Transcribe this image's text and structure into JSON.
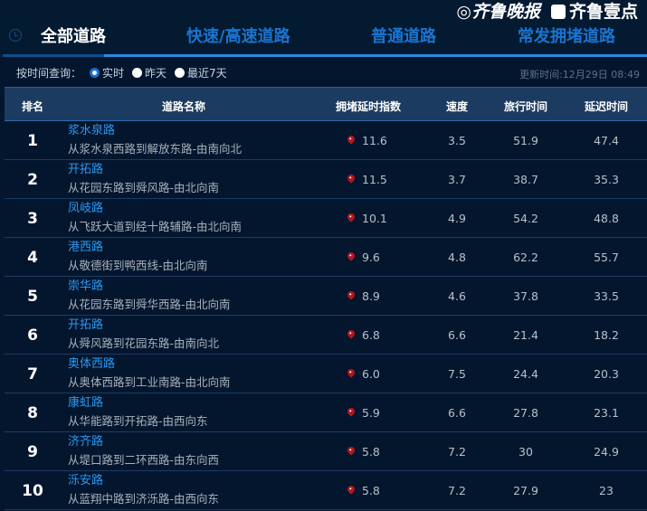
{
  "tabs": [
    {
      "label": "全部道路",
      "active": true
    },
    {
      "label": "快速/高速道路"
    },
    {
      "label": "普通道路"
    },
    {
      "label": "常发拥堵道路"
    }
  ],
  "filter": {
    "label": "按时间查询：",
    "options": [
      {
        "label": "实时",
        "selected": true
      },
      {
        "label": "昨天"
      },
      {
        "label": "最近7天"
      }
    ]
  },
  "update_time": "更新时间:12月29日 08:49",
  "columns": [
    "排名",
    "道路名称",
    "拥堵延时指数",
    "速度",
    "旅行时间",
    "延迟时间"
  ],
  "rows": [
    {
      "rank": "1",
      "name": "浆水泉路",
      "desc": "从浆水泉西路到解放东路-由南向北",
      "index": "11.6",
      "speed": "3.5",
      "travel": "51.9",
      "delay": "47.4"
    },
    {
      "rank": "2",
      "name": "开拓路",
      "desc": "从花园东路到舜风路-由北向南",
      "index": "11.5",
      "speed": "3.7",
      "travel": "38.7",
      "delay": "35.3"
    },
    {
      "rank": "3",
      "name": "凤岐路",
      "desc": "从飞跃大道到经十路辅路-由北向南",
      "index": "10.1",
      "speed": "4.9",
      "travel": "54.2",
      "delay": "48.8"
    },
    {
      "rank": "4",
      "name": "港西路",
      "desc": "从敬德街到鸭西线-由北向南",
      "index": "9.6",
      "speed": "4.8",
      "travel": "62.2",
      "delay": "55.7"
    },
    {
      "rank": "5",
      "name": "崇华路",
      "desc": "从花园东路到舜华西路-由北向南",
      "index": "8.9",
      "speed": "4.6",
      "travel": "37.8",
      "delay": "33.5"
    },
    {
      "rank": "6",
      "name": "开拓路",
      "desc": "从舜风路到花园东路-由南向北",
      "index": "6.8",
      "speed": "6.6",
      "travel": "21.4",
      "delay": "18.2"
    },
    {
      "rank": "7",
      "name": "奥体西路",
      "desc": "从奥体西路到工业南路-由北向南",
      "index": "6.0",
      "speed": "7.5",
      "travel": "24.4",
      "delay": "20.3"
    },
    {
      "rank": "8",
      "name": "康虹路",
      "desc": "从华能路到开拓路-由西向东",
      "index": "5.9",
      "speed": "6.6",
      "travel": "27.8",
      "delay": "23.1"
    },
    {
      "rank": "9",
      "name": "济齐路",
      "desc": "从堤口路到二环西路-由东向西",
      "index": "5.8",
      "speed": "7.2",
      "travel": "30",
      "delay": "24.9"
    },
    {
      "rank": "10",
      "name": "泺安路",
      "desc": "从蓝翔中路到济泺路-由西向东",
      "index": "5.8",
      "speed": "7.2",
      "travel": "27.9",
      "delay": "23"
    }
  ],
  "watermark": {
    "left": "齐鲁晚报",
    "right": "齐鲁壹点"
  },
  "colors": {
    "accent": "#2c98f0",
    "background": "#04162e",
    "header": "#1c3b60",
    "pin": "#b3161f"
  }
}
